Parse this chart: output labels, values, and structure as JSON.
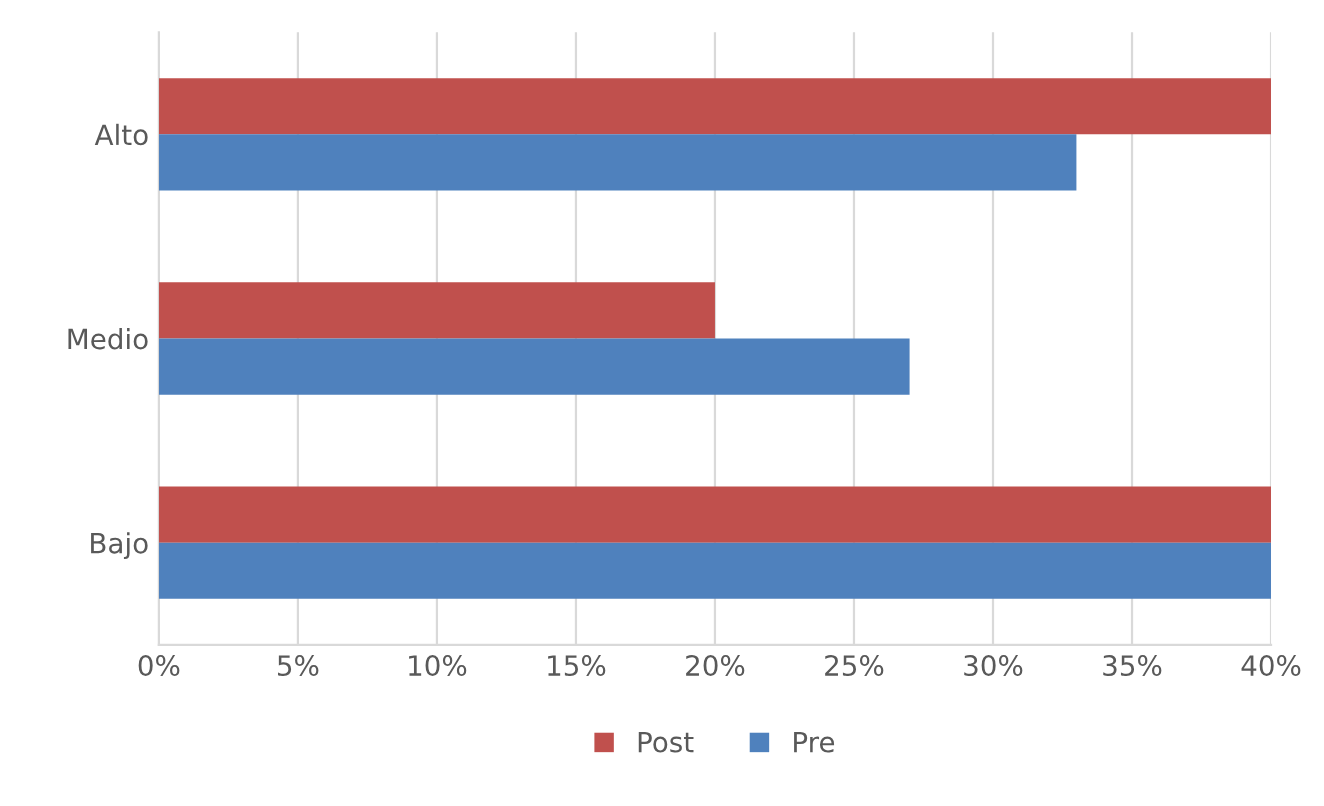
{
  "chart_data": {
    "type": "bar",
    "orientation": "horizontal",
    "categories": [
      "Alto",
      "Medio",
      "Bajo"
    ],
    "series": [
      {
        "name": "Post",
        "color": "#c0504d",
        "values": [
          40,
          20,
          40
        ]
      },
      {
        "name": "Pre",
        "color": "#4f81bd",
        "values": [
          33,
          27,
          40
        ]
      }
    ],
    "xlim": [
      0,
      40
    ],
    "xticks": [
      {
        "value": 0,
        "label": "0%"
      },
      {
        "value": 5,
        "label": "5%"
      },
      {
        "value": 10,
        "label": "10%"
      },
      {
        "value": 15,
        "label": "15%"
      },
      {
        "value": 20,
        "label": "20%"
      },
      {
        "value": 25,
        "label": "25%"
      },
      {
        "value": 30,
        "label": "30%"
      },
      {
        "value": 35,
        "label": "35%"
      },
      {
        "value": 40,
        "label": "40%"
      }
    ],
    "grid": "x",
    "legend": "bottom"
  }
}
